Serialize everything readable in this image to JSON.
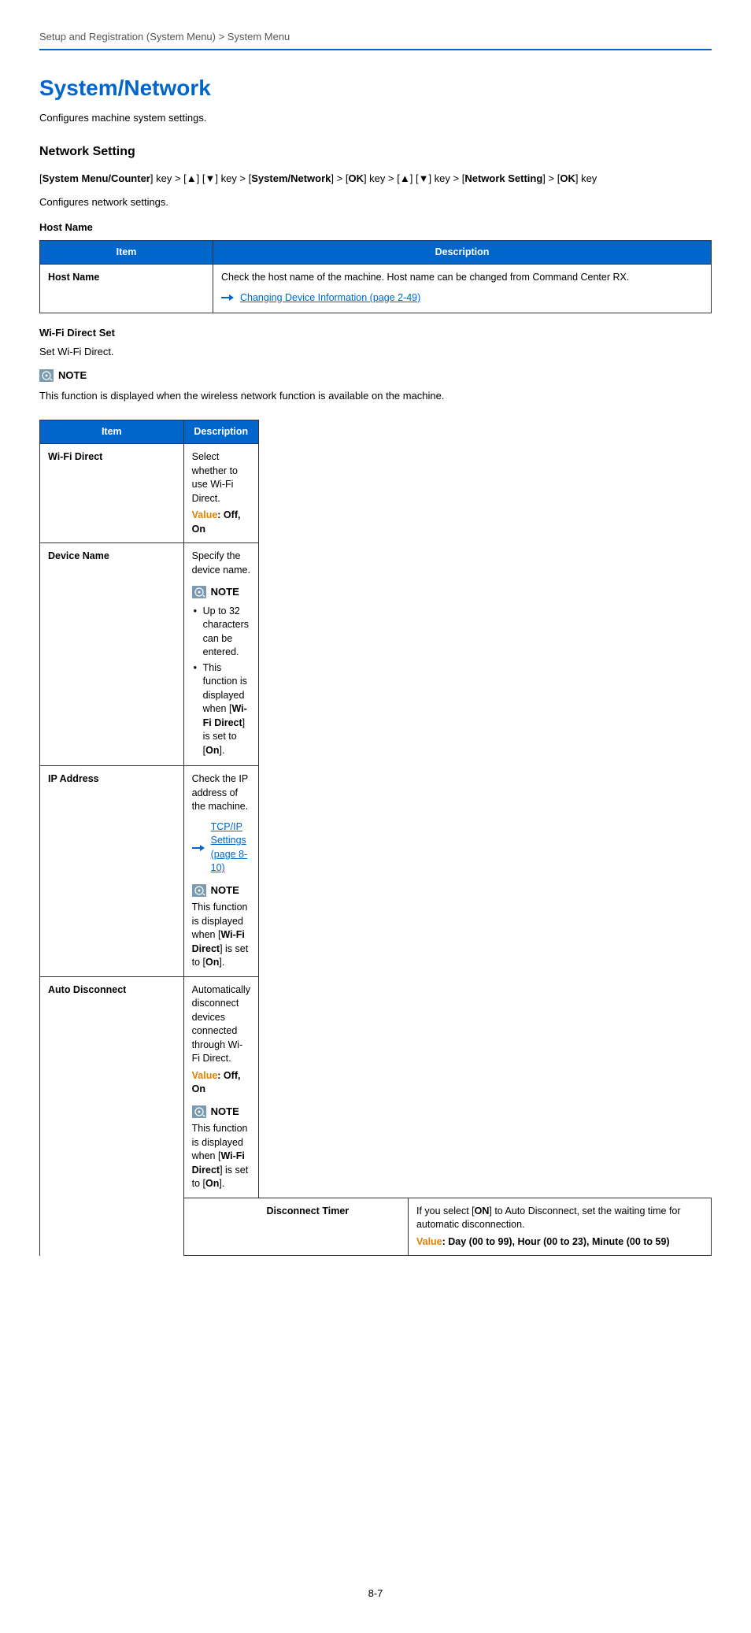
{
  "header": {
    "breadcrumb": "Setup and Registration (System Menu) > System Menu"
  },
  "title": "System/Network",
  "intro": "Configures machine system settings.",
  "section_title": "Network Setting",
  "nav_path_segments": [
    {
      "t": "[",
      "b": false
    },
    {
      "t": "System Menu/Counter",
      "b": true
    },
    {
      "t": "] key > [",
      "b": false
    },
    {
      "t": "▲",
      "b": true
    },
    {
      "t": "] [",
      "b": false
    },
    {
      "t": "▼",
      "b": true
    },
    {
      "t": "] key > [",
      "b": false
    },
    {
      "t": "System/Network",
      "b": true
    },
    {
      "t": "] > [",
      "b": false
    },
    {
      "t": "OK",
      "b": true
    },
    {
      "t": "] key > [",
      "b": false
    },
    {
      "t": "▲",
      "b": true
    },
    {
      "t": "] [",
      "b": false
    },
    {
      "t": "▼",
      "b": true
    },
    {
      "t": "] key > [",
      "b": false
    },
    {
      "t": "Network Setting",
      "b": true
    },
    {
      "t": "] > [",
      "b": false
    },
    {
      "t": "OK",
      "b": true
    },
    {
      "t": "] key",
      "b": false
    }
  ],
  "sub_intro": "Configures network settings.",
  "table_headers": {
    "item": "Item",
    "description": "Description"
  },
  "hostname": {
    "title": "Host Name",
    "item": "Host Name",
    "desc": "Check the host name of the machine. Host name can be changed from Command Center RX.",
    "link": "Changing Device Information (page 2-49)"
  },
  "wifi": {
    "title": "Wi-Fi Direct Set",
    "set_text": "Set Wi-Fi Direct.",
    "note_label": "NOTE",
    "note_text": "This function is displayed when the wireless network function is available on the machine.",
    "rows": {
      "wifi_direct": {
        "item": "Wi-Fi Direct",
        "desc": "Select whether to use Wi-Fi Direct.",
        "value_label": "Value",
        "value_text": ": Off, On"
      },
      "device_name": {
        "item": "Device Name",
        "desc": "Specify the device name.",
        "note_label": "NOTE",
        "bullets": [
          "Up to 32 characters can be entered.",
          "This function is displayed when [Wi-Fi Direct] is set to [On]."
        ],
        "bold_in_b1": [
          "Wi-Fi Direct",
          "On"
        ]
      },
      "ip_address": {
        "item": "IP Address",
        "desc": "Check the IP address of the machine.",
        "link": "TCP/IP Settings (page 8-10)",
        "note_label": "NOTE",
        "note_text_pre": "This function is displayed when [",
        "note_bold1": "Wi-Fi Direct",
        "note_mid": "] is set to [",
        "note_bold2": "On",
        "note_text_post": "]."
      },
      "auto_disconnect": {
        "item": "Auto Disconnect",
        "desc": "Automatically disconnect devices connected through Wi-Fi Direct.",
        "value_label": "Value",
        "value_text": ": Off, On",
        "note_label": "NOTE",
        "note_text_pre": "This function is displayed when [",
        "note_bold1": "Wi-Fi Direct",
        "note_mid": "] is set to [",
        "note_bold2": "On",
        "note_text_post": "]."
      },
      "disconnect_timer": {
        "item": "Disconnect Timer",
        "desc_pre": "If you select [",
        "desc_bold": "ON",
        "desc_post": "] to Auto Disconnect, set the waiting time for automatic disconnection.",
        "value_label": "Value",
        "value_text": ": Day (00 to 99), Hour (00 to 23), Minute (00 to 59)"
      }
    }
  },
  "page_number": "8-7",
  "colors": {
    "accent": "#0066cc",
    "value_orange": "#e08000",
    "note_icon_bg": "#7a9ab0"
  }
}
